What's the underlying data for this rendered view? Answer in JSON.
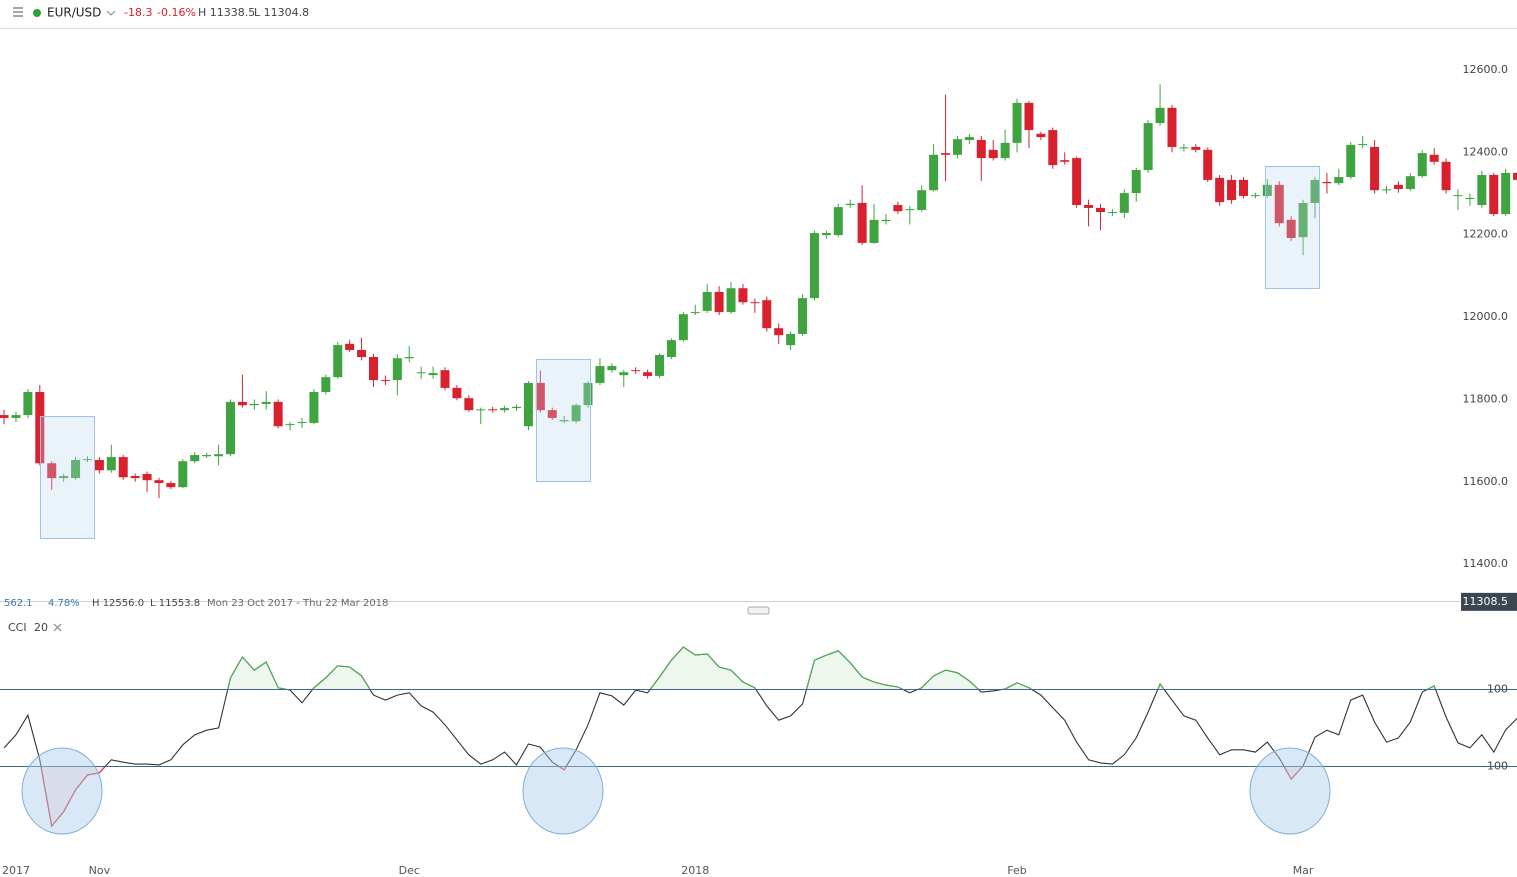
{
  "header": {
    "symbol": "EUR/USD",
    "change": "-18.3",
    "change_pct": "-0.16%",
    "high": "H 11338.5",
    "low": "L 11304.8"
  },
  "range_info": {
    "change": "562.1",
    "change_pct": "4.78%",
    "high": "H 12556.0",
    "low": "L 11553.8",
    "dates": "Mon 23 Oct 2017 - Thu 22 Mar 2018"
  },
  "chart_data": [
    {
      "type": "candlestick",
      "up_color": "#3fa33f",
      "down_color": "#d9202e",
      "open": [
        11762,
        11755,
        11762,
        11818,
        11645,
        11609,
        11609,
        11653,
        11653,
        11628,
        11660,
        11614,
        11619,
        11604,
        11597,
        11587,
        11650,
        11662,
        11662,
        11667,
        11794,
        11786,
        11789,
        11794,
        11738,
        11743,
        11743,
        11818,
        11854,
        11935,
        11920,
        11903,
        11847,
        11847,
        11900,
        11866,
        11859,
        11871,
        11828,
        11803,
        11774,
        11776,
        11774,
        11779,
        11735,
        11840,
        11774,
        11747,
        11747,
        11786,
        11840,
        11871,
        11859,
        11871,
        11866,
        11857,
        11903,
        11944,
        12010,
        12015,
        12061,
        12012,
        12070,
        12036,
        12041,
        11973,
        11932,
        11959,
        12046,
        12199,
        12199,
        12272,
        12277,
        12180,
        12233,
        12272,
        12260,
        12260,
        12308,
        12398,
        12394,
        12430,
        12430,
        12406,
        12386,
        12423,
        12520,
        12445,
        12454,
        12381,
        12386,
        12272,
        12265,
        12253,
        12253,
        12301,
        12357,
        12471,
        12508,
        12410,
        12413,
        12406,
        12338,
        12333,
        12333,
        12294,
        12294,
        12321,
        12236,
        12194,
        12277,
        12328,
        12325,
        12340,
        12418,
        12413,
        12308,
        12321,
        12311,
        12342,
        12394,
        12377,
        12294,
        12287,
        12272,
        12345,
        12250,
        12350
      ],
      "high": [
        11775,
        11770,
        11825,
        11835,
        11650,
        11620,
        11660,
        11662,
        11660,
        11690,
        11665,
        11620,
        11625,
        11610,
        11602,
        11655,
        11672,
        11670,
        11690,
        11800,
        11860,
        11800,
        11820,
        11800,
        11745,
        11755,
        11825,
        11860,
        11940,
        11945,
        11950,
        11910,
        11858,
        11910,
        11930,
        11880,
        11880,
        11878,
        11835,
        11810,
        11780,
        11782,
        11785,
        11788,
        11845,
        11870,
        11780,
        11760,
        11790,
        11845,
        11900,
        11888,
        11872,
        11878,
        11872,
        11912,
        11948,
        12012,
        12030,
        12080,
        12075,
        12085,
        12080,
        12045,
        12050,
        11985,
        11965,
        12055,
        12210,
        12210,
        12275,
        12285,
        12320,
        12275,
        12250,
        12280,
        12270,
        12320,
        12420,
        12540,
        12440,
        12445,
        12440,
        12430,
        12455,
        12530,
        12525,
        12450,
        12460,
        12400,
        12390,
        12285,
        12275,
        12262,
        12310,
        12362,
        12478,
        12565,
        12515,
        12420,
        12420,
        12412,
        12345,
        12345,
        12340,
        12302,
        12335,
        12330,
        12245,
        12285,
        12340,
        12350,
        12360,
        12425,
        12440,
        12430,
        12318,
        12330,
        12350,
        12405,
        12410,
        12385,
        12310,
        12300,
        12355,
        12350,
        12360,
        12360
      ],
      "low": [
        11740,
        11745,
        11755,
        11640,
        11580,
        11600,
        11605,
        11648,
        11620,
        11622,
        11605,
        11600,
        11575,
        11560,
        11582,
        11585,
        11645,
        11658,
        11640,
        11662,
        11780,
        11775,
        11775,
        11730,
        11725,
        11730,
        11740,
        11812,
        11850,
        11915,
        11895,
        11830,
        11835,
        11810,
        11890,
        11850,
        11850,
        11822,
        11798,
        11770,
        11740,
        11768,
        11768,
        11772,
        11725,
        11768,
        11750,
        11742,
        11742,
        11780,
        11835,
        11865,
        11830,
        11862,
        11850,
        11852,
        11898,
        11940,
        12005,
        12010,
        12005,
        12008,
        12030,
        12010,
        11965,
        11935,
        11920,
        11955,
        12040,
        12190,
        12195,
        12265,
        12175,
        12178,
        12225,
        12250,
        12225,
        12255,
        12305,
        12330,
        12385,
        12420,
        12330,
        12380,
        12380,
        12400,
        12410,
        12430,
        12360,
        12370,
        12265,
        12220,
        12210,
        12245,
        12240,
        12280,
        12350,
        12465,
        12400,
        12402,
        12400,
        12328,
        12270,
        12275,
        12288,
        12288,
        12290,
        12220,
        12185,
        12150,
        12240,
        12300,
        12320,
        12335,
        12410,
        12300,
        12300,
        12302,
        12306,
        12338,
        12370,
        12300,
        12260,
        12270,
        12265,
        12245,
        12245,
        12325
      ],
      "close": [
        11755,
        11762,
        11818,
        11645,
        11609,
        11614,
        11653,
        11655,
        11628,
        11660,
        11611,
        11609,
        11604,
        11597,
        11587,
        11650,
        11665,
        11665,
        11667,
        11794,
        11786,
        11789,
        11794,
        11735,
        11740,
        11745,
        11818,
        11854,
        11932,
        11920,
        11903,
        11847,
        11845,
        11900,
        11903,
        11866,
        11864,
        11828,
        11803,
        11774,
        11776,
        11774,
        11779,
        11782,
        11840,
        11774,
        11755,
        11750,
        11786,
        11840,
        11881,
        11881,
        11866,
        11870,
        11857,
        11908,
        11944,
        12007,
        12012,
        12061,
        12012,
        12070,
        12036,
        12034,
        11973,
        11956,
        11959,
        12046,
        12204,
        12204,
        12267,
        12275,
        12180,
        12236,
        12236,
        12257,
        12262,
        12308,
        12394,
        12394,
        12432,
        12437,
        12386,
        12386,
        12423,
        12520,
        12454,
        12437,
        12369,
        12377,
        12272,
        12265,
        12255,
        12255,
        12301,
        12357,
        12471,
        12508,
        12413,
        12412,
        12406,
        12333,
        12279,
        12284,
        12294,
        12296,
        12321,
        12228,
        12192,
        12277,
        12333,
        12325,
        12340,
        12418,
        12420,
        12308,
        12310,
        12311,
        12342,
        12398,
        12377,
        12308,
        12296,
        12289,
        12345,
        12250,
        12350,
        12333
      ],
      "ylim": [
        11313,
        12697
      ],
      "yticks": [
        {
          "value": 11400,
          "label": "11400.0"
        },
        {
          "value": 11600,
          "label": "11600.0"
        },
        {
          "value": 11800,
          "label": "11800.0"
        },
        {
          "value": 12000,
          "label": "12000.0"
        },
        {
          "value": 12200,
          "label": "12200.0"
        },
        {
          "value": 12400,
          "label": "12400.0"
        },
        {
          "value": 12600,
          "label": "12600.0"
        }
      ],
      "xlim": [
        -0.34,
        126.95
      ],
      "xticks": [
        {
          "value": 1,
          "label": "2017"
        },
        {
          "value": 8,
          "label": "Nov"
        },
        {
          "value": 34,
          "label": "Dec"
        },
        {
          "value": 58,
          "label": "2018"
        },
        {
          "value": 85,
          "label": "Feb"
        },
        {
          "value": 109,
          "label": "Mar"
        }
      ],
      "last_price": {
        "value": 11308.5,
        "label": "11308.5"
      }
    },
    {
      "type": "line",
      "title": "CCI",
      "period": "20",
      "color": "#333333",
      "upper_color": "#4caf50",
      "lower_color": "#e53935",
      "level_color": "#3d6a8c",
      "values": [
        -53,
        -19,
        32,
        -84,
        -256,
        -219,
        -162,
        -123,
        -118,
        -84,
        -90,
        -95,
        -95,
        -97,
        -84,
        -45,
        -19,
        -7,
        -1,
        129,
        183,
        149,
        170,
        103,
        97,
        64,
        103,
        129,
        160,
        157,
        134,
        84,
        71,
        84,
        90,
        56,
        40,
        7,
        -32,
        -71,
        -95,
        -84,
        -64,
        -97,
        -43,
        -51,
        -90,
        -110,
        -58,
        7,
        90,
        82,
        58,
        97,
        90,
        131,
        175,
        209,
        188,
        191,
        157,
        149,
        118,
        103,
        56,
        19,
        30,
        61,
        175,
        188,
        199,
        168,
        131,
        118,
        110,
        105,
        90,
        103,
        134,
        149,
        142,
        121,
        92,
        95,
        100,
        116,
        103,
        84,
        51,
        19,
        -38,
        -84,
        -92,
        -95,
        -71,
        -27,
        40,
        113,
        71,
        30,
        19,
        -27,
        -71,
        -58,
        -58,
        -64,
        -38,
        -79,
        -134,
        -100,
        -25,
        -7,
        -19,
        71,
        84,
        14,
        -38,
        -27,
        14,
        92,
        108,
        27,
        -40,
        -53,
        -19,
        -64,
        -6,
        25
      ],
      "ylim": [
        -344,
        292
      ],
      "yticks": [
        100,
        -100
      ],
      "xlim": [
        -0.34,
        126.95
      ]
    }
  ]
}
